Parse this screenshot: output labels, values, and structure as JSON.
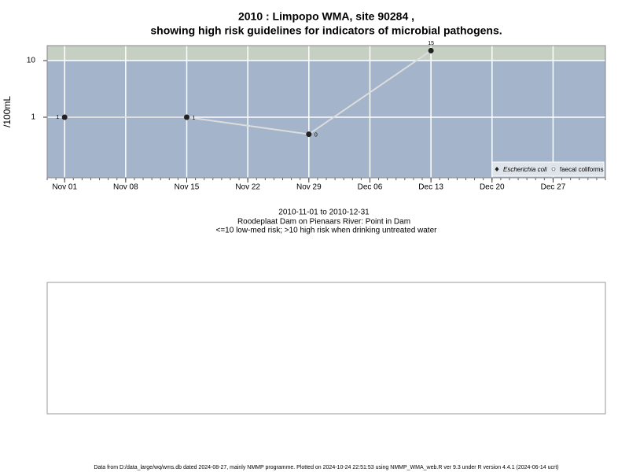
{
  "chart_data": {
    "type": "line",
    "title": "2010 : Limpopo WMA, site 90284 ,",
    "subtitle": "showing high risk guidelines for indicators of microbial pathogens.",
    "ylabel": "/100mL",
    "x": [
      "2010-11-01",
      "2010-11-15",
      "2010-11-29",
      "2010-12-13"
    ],
    "series": [
      {
        "name": "Escherichia coli",
        "color": "#222222",
        "line_color": "#dddddd",
        "values": [
          1,
          1,
          0.5,
          15
        ],
        "value_labels": [
          "1",
          "1",
          "0",
          "15"
        ]
      },
      {
        "name": "faecal coliforms",
        "color": "#ffffff",
        "values": [
          null,
          null,
          null,
          null
        ]
      }
    ],
    "xlim": [
      "2010-10-30",
      "2011-01-02"
    ],
    "xticks": [
      {
        "value": "2010-11-01",
        "label": "Nov 01"
      },
      {
        "value": "2010-11-08",
        "label": "Nov 08"
      },
      {
        "value": "2010-11-15",
        "label": "Nov 15"
      },
      {
        "value": "2010-11-22",
        "label": "Nov 22"
      },
      {
        "value": "2010-11-29",
        "label": "Nov 29"
      },
      {
        "value": "2010-12-06",
        "label": "Dec 06"
      },
      {
        "value": "2010-12-13",
        "label": "Dec 13"
      },
      {
        "value": "2010-12-20",
        "label": "Dec 20"
      },
      {
        "value": "2010-12-27",
        "label": "Dec 27"
      }
    ],
    "ylim": [
      0.085,
      18.4
    ],
    "yticks": [
      1,
      10
    ],
    "log_y": true,
    "grid": true,
    "high_risk_threshold": 10,
    "high_risk_color": "#c5cfc2",
    "background_color": "#a3b4cb",
    "legend": "bottom-right",
    "notes": [
      "2010-11-01 to 2010-12-31",
      "Roodeplaat Dam on Pienaars River: Point in Dam",
      "<=10 low-med risk; >10 high risk when drinking untreated water"
    ],
    "footer": "Data from D:/data_large/wq/wms.db dated 2024-08-27, mainly NMMP programme. Plotted on 2024-10-24 22:51:53 using NMMP_WMA_web.R ver 9.3 under R version 4.4.1 (2024-06-14 ucrt)"
  }
}
